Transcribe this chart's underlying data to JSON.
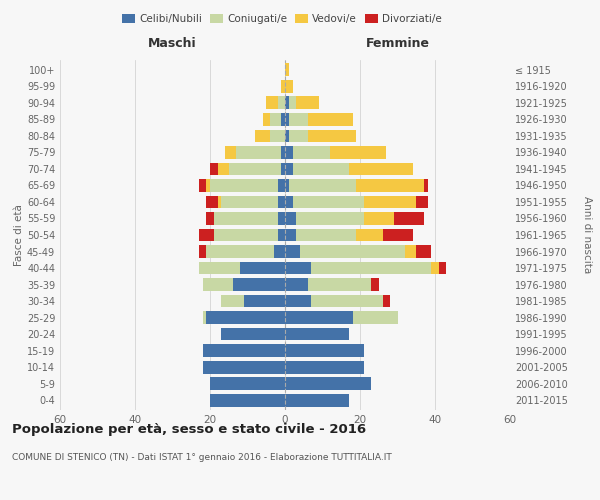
{
  "age_groups": [
    "0-4",
    "5-9",
    "10-14",
    "15-19",
    "20-24",
    "25-29",
    "30-34",
    "35-39",
    "40-44",
    "45-49",
    "50-54",
    "55-59",
    "60-64",
    "65-69",
    "70-74",
    "75-79",
    "80-84",
    "85-89",
    "90-94",
    "95-99",
    "100+"
  ],
  "birth_years": [
    "2011-2015",
    "2006-2010",
    "2001-2005",
    "1996-2000",
    "1991-1995",
    "1986-1990",
    "1981-1985",
    "1976-1980",
    "1971-1975",
    "1966-1970",
    "1961-1965",
    "1956-1960",
    "1951-1955",
    "1946-1950",
    "1941-1945",
    "1936-1940",
    "1931-1935",
    "1926-1930",
    "1921-1925",
    "1916-1920",
    "≤ 1915"
  ],
  "maschi": {
    "celibe": [
      20,
      20,
      22,
      22,
      17,
      21,
      11,
      14,
      12,
      3,
      2,
      2,
      2,
      2,
      1,
      1,
      0,
      1,
      0,
      0,
      0
    ],
    "coniugato": [
      0,
      0,
      0,
      0,
      0,
      1,
      6,
      8,
      11,
      18,
      17,
      17,
      15,
      18,
      14,
      12,
      4,
      3,
      2,
      0,
      0
    ],
    "vedovo": [
      0,
      0,
      0,
      0,
      0,
      0,
      0,
      0,
      0,
      0,
      0,
      0,
      1,
      1,
      3,
      3,
      4,
      2,
      3,
      1,
      0
    ],
    "divorziato": [
      0,
      0,
      0,
      0,
      0,
      0,
      0,
      0,
      0,
      2,
      4,
      2,
      3,
      2,
      2,
      0,
      0,
      0,
      0,
      0,
      0
    ]
  },
  "femmine": {
    "nubile": [
      17,
      23,
      21,
      21,
      17,
      18,
      7,
      6,
      7,
      4,
      3,
      3,
      2,
      1,
      2,
      2,
      1,
      1,
      1,
      0,
      0
    ],
    "coniugata": [
      0,
      0,
      0,
      0,
      0,
      12,
      19,
      17,
      32,
      28,
      16,
      18,
      19,
      18,
      15,
      10,
      5,
      5,
      2,
      0,
      0
    ],
    "vedova": [
      0,
      0,
      0,
      0,
      0,
      0,
      0,
      0,
      2,
      3,
      7,
      8,
      14,
      18,
      17,
      15,
      13,
      12,
      6,
      2,
      1
    ],
    "divorziata": [
      0,
      0,
      0,
      0,
      0,
      0,
      2,
      2,
      2,
      4,
      8,
      8,
      3,
      1,
      0,
      0,
      0,
      0,
      0,
      0,
      0
    ]
  },
  "colors": {
    "celibe": "#4472a8",
    "coniugato": "#c8d8a4",
    "vedovo": "#f5c842",
    "divorziato": "#cc2020"
  },
  "title": "Popolazione per età, sesso e stato civile - 2016",
  "subtitle": "COMUNE DI STENICO (TN) - Dati ISTAT 1° gennaio 2016 - Elaborazione TUTTITALIA.IT",
  "xlabel_left": "Maschi",
  "xlabel_right": "Femmine",
  "ylabel_left": "Fasce di età",
  "ylabel_right": "Anni di nascita",
  "xlim": 60,
  "background_color": "#f7f7f7",
  "grid_color": "#cccccc"
}
